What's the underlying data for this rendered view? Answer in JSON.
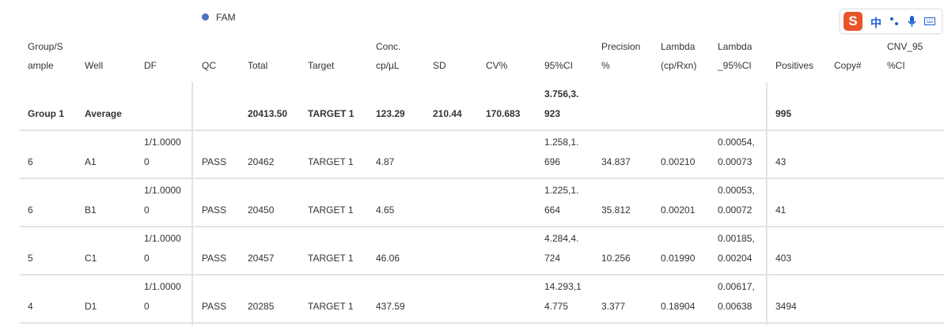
{
  "legend": {
    "label": "FAM"
  },
  "ime_toolbar": {
    "logo": "S",
    "mode": "中"
  },
  "table": {
    "header": [
      [
        "Group/S",
        "ample"
      ],
      "Well",
      "DF",
      "QC",
      "Total",
      "Target",
      [
        "Conc.",
        "cp/µL"
      ],
      "SD",
      "CV%",
      "95%CI",
      [
        "Precision",
        "%"
      ],
      [
        "Lambda",
        "(cp/Rxn)"
      ],
      [
        "Lambda",
        "_95%CI"
      ],
      "Positives",
      "Copy#",
      [
        "CNV_95",
        "%CI"
      ]
    ],
    "rows": [
      [
        "Group 1",
        "Average",
        "",
        "",
        "20413.50",
        "TARGET 1",
        "123.29",
        "210.44",
        "170.683",
        [
          "3.756,3.",
          "923"
        ],
        "",
        "",
        "",
        "995",
        "",
        ""
      ],
      [
        "6",
        "A1",
        [
          "1/1.0000",
          "0"
        ],
        "PASS",
        "20462",
        "TARGET 1",
        "4.87",
        "",
        "",
        [
          "1.258,1.",
          "696"
        ],
        "34.837",
        "0.00210",
        [
          "0.00054,",
          "0.00073"
        ],
        "43",
        "",
        ""
      ],
      [
        "6",
        "B1",
        [
          "1/1.0000",
          "0"
        ],
        "PASS",
        "20450",
        "TARGET 1",
        "4.65",
        "",
        "",
        [
          "1.225,1.",
          "664"
        ],
        "35.812",
        "0.00201",
        [
          "0.00053,",
          "0.00072"
        ],
        "41",
        "",
        ""
      ],
      [
        "5",
        "C1",
        [
          "1/1.0000",
          "0"
        ],
        "PASS",
        "20457",
        "TARGET 1",
        "46.06",
        "",
        "",
        [
          "4.284,4.",
          "724"
        ],
        "10.256",
        "0.01990",
        [
          "0.00185,",
          "0.00204"
        ],
        "403",
        "",
        ""
      ],
      [
        "4",
        "D1",
        [
          "1/1.0000",
          "0"
        ],
        "PASS",
        "20285",
        "TARGET 1",
        "437.59",
        "",
        "",
        [
          "14.293,1",
          "4.775"
        ],
        "3.377",
        "0.18904",
        [
          "0.00617,",
          "0.00638"
        ],
        "3494",
        "",
        ""
      ]
    ]
  }
}
